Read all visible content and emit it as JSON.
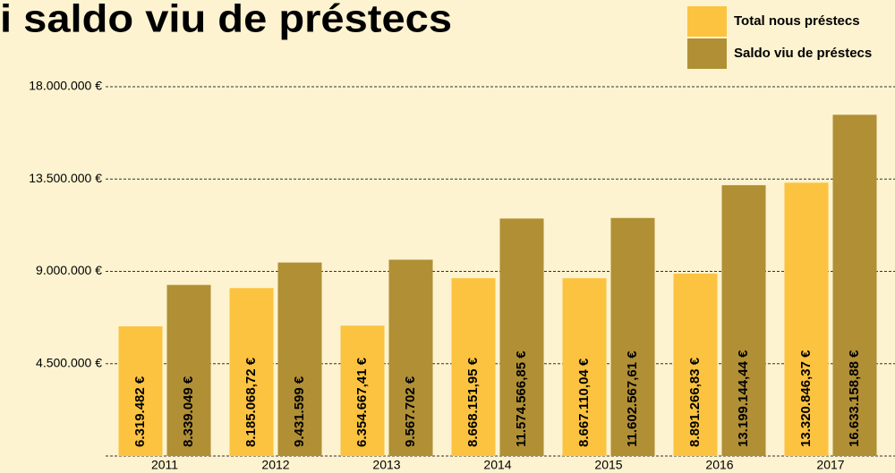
{
  "chart_data": {
    "type": "bar",
    "title": "i saldo viu de préstecs",
    "categories": [
      "2011",
      "2012",
      "2013",
      "2014",
      "2015",
      "2016",
      "2017"
    ],
    "series": [
      {
        "name": "Total nous préstecs",
        "color": "#fcc340",
        "values": [
          6319482,
          8185068.72,
          6354667.41,
          8668151.95,
          8667110.04,
          8891266.83,
          13320846.37
        ],
        "value_labels": [
          "6.319.482 €",
          "8.185.068,72 €",
          "6.354.667,41 €",
          "8.668.151,95 €",
          "8.667.110,04 €",
          "8.891.266,83 €",
          "13.320.846,37 €"
        ]
      },
      {
        "name": "Saldo viu de préstecs",
        "color": "#b08f35",
        "values": [
          8339049,
          9431599,
          9567702,
          11574566.85,
          11602567.61,
          13199144.44,
          16633158.88
        ],
        "value_labels": [
          "8.339.049 €",
          "9.431.599 €",
          "9.567.702 €",
          "11.574.566,85 €",
          "11.602.567,61 €",
          "13.199.144,44 €",
          "16.633.158,88 €"
        ]
      }
    ],
    "ylim": [
      0,
      18000000
    ],
    "yticks": [
      {
        "value": 4500000,
        "label": "4.500.000 €"
      },
      {
        "value": 9000000,
        "label": "9.000.000 €"
      },
      {
        "value": 13500000,
        "label": "13.500.000 €"
      },
      {
        "value": 18000000,
        "label": "18.000.000 €"
      }
    ],
    "grid": true
  }
}
